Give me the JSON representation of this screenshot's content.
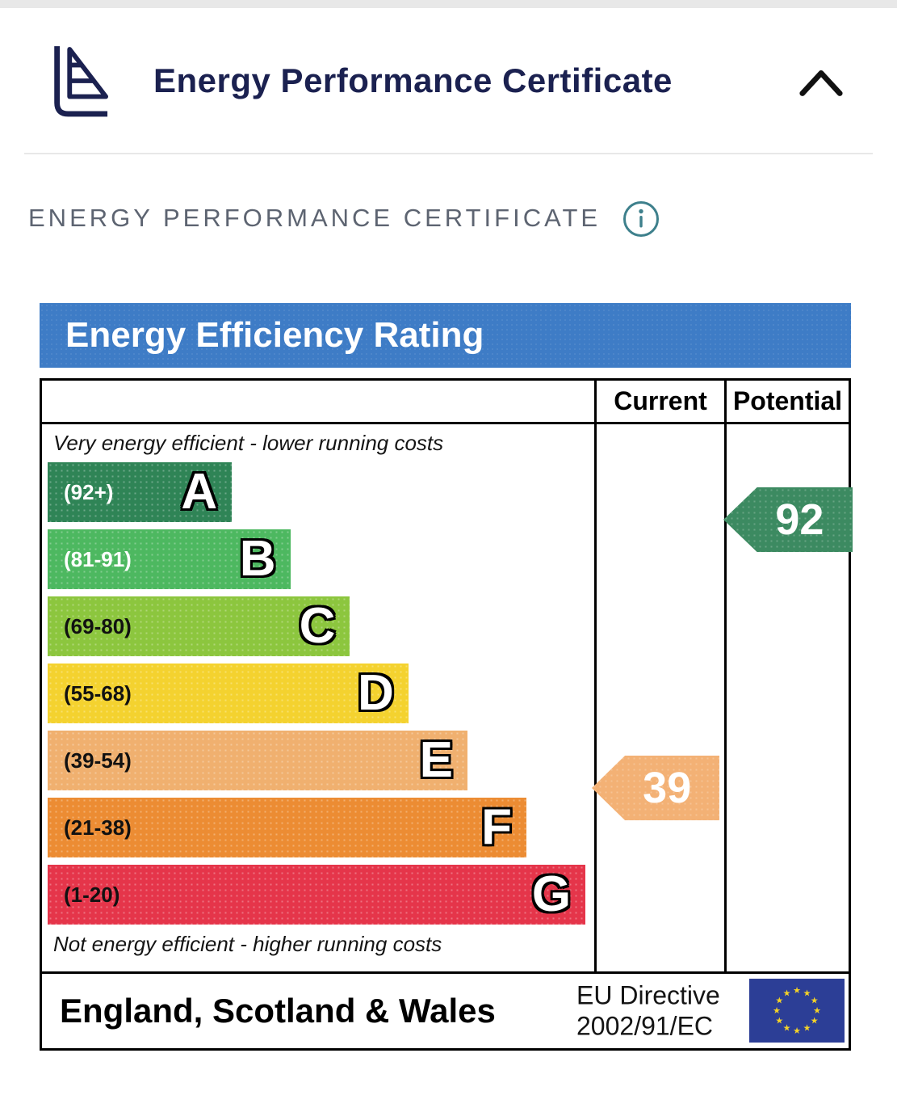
{
  "header": {
    "title": "Energy Performance Certificate"
  },
  "section": {
    "heading": "ENERGY PERFORMANCE CERTIFICATE"
  },
  "chart_data": {
    "type": "bar",
    "title": "Energy Efficiency Rating",
    "title_bar_color": "#3e7cc6",
    "columns": [
      "Current",
      "Potential"
    ],
    "top_note": "Very energy efficient - lower running costs",
    "bottom_note": "Not energy efficient - higher running costs",
    "bands": [
      {
        "letter": "A",
        "range": "(92+)",
        "score_min": 92,
        "score_max": 100,
        "color": "#2f8456",
        "range_text_color": "#ffffff",
        "width_pct": 33.7
      },
      {
        "letter": "B",
        "range": "(81-91)",
        "score_min": 81,
        "score_max": 91,
        "color": "#4db860",
        "range_text_color": "#ffffff",
        "width_pct": 44.4
      },
      {
        "letter": "C",
        "range": "(69-80)",
        "score_min": 69,
        "score_max": 80,
        "color": "#8cc63e",
        "range_text_color": "#111111",
        "width_pct": 55.3
      },
      {
        "letter": "D",
        "range": "(55-68)",
        "score_min": 55,
        "score_max": 68,
        "color": "#f4d22f",
        "range_text_color": "#111111",
        "width_pct": 66.0
      },
      {
        "letter": "E",
        "range": "(39-54)",
        "score_min": 39,
        "score_max": 54,
        "color": "#f0b06f",
        "range_text_color": "#111111",
        "width_pct": 76.8
      },
      {
        "letter": "F",
        "range": "(21-38)",
        "score_min": 21,
        "score_max": 38,
        "color": "#ec8c33",
        "range_text_color": "#111111",
        "width_pct": 87.6
      },
      {
        "letter": "G",
        "range": "(1-20)",
        "score_min": 1,
        "score_max": 20,
        "color": "#e5354a",
        "range_text_color": "#111111",
        "width_pct": 98.4
      }
    ],
    "current": {
      "value": 39,
      "band": "E",
      "color": "#f3b175"
    },
    "potential": {
      "value": 92,
      "band": "A",
      "color": "#3c8a61"
    },
    "footer": {
      "region": "England, Scotland & Wales",
      "directive": "EU Directive\n2002/91/EC"
    }
  }
}
